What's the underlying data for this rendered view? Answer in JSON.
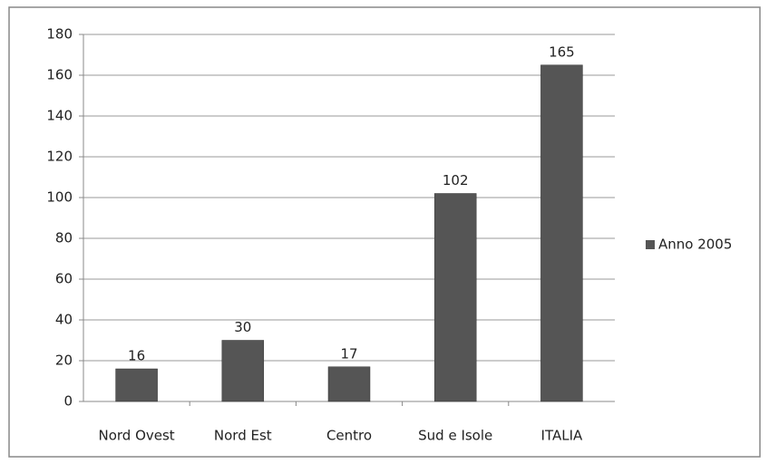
{
  "chart_data": {
    "type": "bar",
    "categories": [
      "Nord Ovest",
      "Nord Est",
      "Centro",
      "Sud e Isole",
      "ITALIA"
    ],
    "series": [
      {
        "name": "Anno 2005",
        "color": "#555555",
        "values": [
          16,
          30,
          17,
          102,
          165
        ]
      }
    ],
    "ylim": [
      0,
      180
    ],
    "yticks": [
      0,
      20,
      40,
      60,
      80,
      100,
      120,
      140,
      160,
      180
    ],
    "grid": true,
    "legend": "right",
    "data_labels": true
  }
}
